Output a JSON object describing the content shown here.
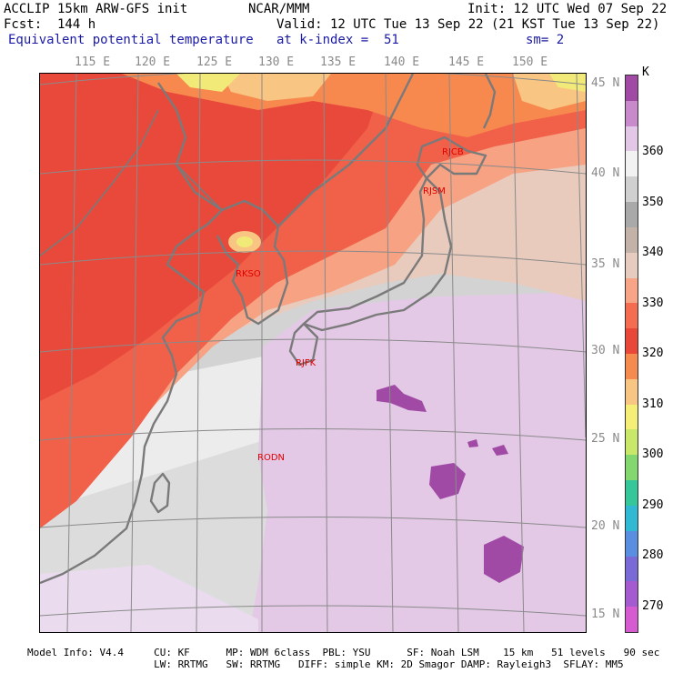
{
  "header": {
    "line1_left": "ACCLIP 15km ARW-GFS init",
    "line1_mid": "NCAR/MMM",
    "line1_right": "Init: 12 UTC Wed 07 Sep 22",
    "line2_left": "Fcst:  144 h",
    "line2_right": "Valid: 12 UTC Tue 13 Sep 22 (21 KST Tue 13 Sep 22)",
    "line3_left": "Equivalent potential temperature",
    "line3_mid": "at k-index =  51",
    "line3_right": "sm= 2"
  },
  "lon_labels": [
    "115 E",
    "120 E",
    "125 E",
    "130 E",
    "135 E",
    "140 E",
    "145 E",
    "150 E"
  ],
  "lat_labels": [
    "45 N",
    "40 N",
    "35 N",
    "30 N",
    "25 N",
    "20 N",
    "15 N"
  ],
  "colorbar": {
    "unit": "K",
    "labels": [
      "360",
      "350",
      "340",
      "330",
      "320",
      "310",
      "300",
      "290",
      "280",
      "270"
    ],
    "colors": [
      "#a04aa6",
      "#c98acb",
      "#e3c7e6",
      "#f2f2f2",
      "#d0d0d0",
      "#a9a9a9",
      "#c2b2a8",
      "#e6cbbf",
      "#f7a586",
      "#f46d50",
      "#e94738",
      "#f58b4f",
      "#f9c582",
      "#f5ee77",
      "#c9e86a",
      "#82d86f",
      "#35c79a",
      "#31b8d3",
      "#5a8ee0",
      "#7a6ad8",
      "#a35bcf",
      "#d65bd1"
    ]
  },
  "stations": [
    "RJCB",
    "RJSM",
    "RKSO",
    "RJFK",
    "RODN"
  ],
  "footer": {
    "line1": "Model Info: V4.4     CU: KF      MP: WDM 6class  PBL: YSU      SF: Noah LSM    15 km   51 levels   90 sec",
    "line2": "                     LW: RRTMG   SW: RRTMG   DIFF: simple KM: 2D Smagor DAMP: Rayleigh3  SFLAY: MM5"
  }
}
